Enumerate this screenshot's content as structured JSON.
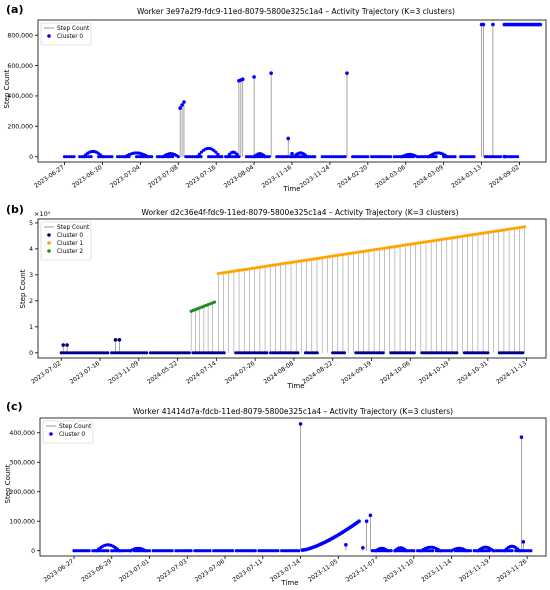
{
  "chart_data": [
    {
      "panel_label": "(a)",
      "type": "scatter",
      "title": "Worker 3e97a2f9-fdc9-11ed-8079-5800e325c1a4 – Activity Trajectory (K=3 clusters)",
      "xlabel": "Time",
      "ylabel": "Step Count",
      "x_ticks": [
        "2023-06-27",
        "2023-06-30",
        "2023-07-04",
        "2023-07-08",
        "2023-07-16",
        "2023-08-04",
        "2023-11-16",
        "2023-11-24",
        "2024-02-20",
        "2024-03-06",
        "2024-03-09",
        "2024-03-13",
        "2024-09-02"
      ],
      "x_tick_positions": [
        0,
        1,
        2,
        3,
        4,
        5,
        6,
        7,
        8,
        9,
        10,
        11,
        12
      ],
      "x_range": [
        -0.7,
        12.7
      ],
      "y_ticks": [
        0,
        200000,
        400000,
        600000,
        800000
      ],
      "y_tick_labels": [
        "0",
        "200,000",
        "400,000",
        "600,000",
        "800,000"
      ],
      "ylim": [
        -35000,
        900000
      ],
      "y_exponent": "",
      "legend": [
        "Step Count",
        "Cluster 0"
      ],
      "legend_position": "top-left",
      "colors": {
        "line": "#808080",
        "Cluster 0": "#0000ff"
      },
      "baseline_runs": [
        [
          0.0,
          0.25
        ],
        [
          0.4,
          0.7
        ],
        [
          0.9,
          1.25
        ],
        [
          1.4,
          1.7
        ],
        [
          1.9,
          2.3
        ],
        [
          2.45,
          2.85
        ],
        [
          3.2,
          3.6
        ],
        [
          3.8,
          4.15
        ],
        [
          4.25,
          4.55
        ],
        [
          4.8,
          5.4
        ],
        [
          5.6,
          6.0
        ],
        [
          6.1,
          6.6
        ],
        [
          6.8,
          7.4
        ],
        [
          7.6,
          8.0
        ],
        [
          8.1,
          8.6
        ],
        [
          8.7,
          9.2
        ],
        [
          9.35,
          9.8
        ],
        [
          10.0,
          10.3
        ],
        [
          10.45,
          10.8
        ],
        [
          11.1,
          11.5
        ],
        [
          11.6,
          11.95
        ]
      ],
      "hump_runs": [
        [
          0.5,
          1.0,
          35000
        ],
        [
          1.6,
          2.2,
          25000
        ],
        [
          2.6,
          3.0,
          20000
        ],
        [
          3.5,
          4.1,
          55000
        ],
        [
          4.3,
          4.6,
          30000
        ],
        [
          5.0,
          5.3,
          20000
        ],
        [
          6.05,
          6.4,
          25000
        ],
        [
          8.9,
          9.3,
          15000
        ],
        [
          9.6,
          10.1,
          25000
        ]
      ],
      "spikes": [
        [
          3.05,
          320000
        ],
        [
          3.1,
          340000
        ],
        [
          3.15,
          360000
        ],
        [
          4.6,
          500000
        ],
        [
          4.65,
          505000
        ],
        [
          4.7,
          510000
        ],
        [
          5.0,
          525000
        ],
        [
          5.45,
          550000
        ],
        [
          5.9,
          120000
        ],
        [
          6.0,
          20000
        ],
        [
          7.45,
          550000
        ],
        [
          11.0,
          870000
        ],
        [
          11.05,
          870000
        ],
        [
          11.3,
          870000
        ],
        [
          11.6,
          0
        ]
      ],
      "plateau": [
        11.6,
        12.55,
        870000
      ]
    },
    {
      "panel_label": "(b)",
      "type": "scatter",
      "title": "Worker d2c36e4f-fdc9-11ed-8079-5800e325c1a4 – Activity Trajectory (K=3 clusters)",
      "xlabel": "Time",
      "ylabel": "Step Count",
      "x_ticks": [
        "2023-07-02",
        "2023-07-16",
        "2023-11-09",
        "2024-05-22",
        "2024-07-14",
        "2024-07-26",
        "2024-08-08",
        "2024-08-22",
        "2024-09-19",
        "2024-10-06",
        "2024-10-19",
        "2024-10-31",
        "2024-11-13"
      ],
      "x_tick_positions": [
        0,
        1,
        2,
        3,
        4,
        5,
        6,
        7,
        8,
        9,
        10,
        11,
        12
      ],
      "x_range": [
        -0.6,
        12.5
      ],
      "y_ticks": [
        0,
        100000,
        200000,
        300000,
        400000,
        500000
      ],
      "y_tick_labels": [
        "0",
        "1",
        "2",
        "3",
        "4",
        "5"
      ],
      "ylim": [
        -20000,
        515000
      ],
      "y_exponent": "×10⁵",
      "legend": [
        "Step Count",
        "Cluster 0",
        "Cluster 1",
        "Cluster 2"
      ],
      "legend_position": "top-left",
      "colors": {
        "line": "#808080",
        "Cluster 0": "#00008b",
        "Cluster 1": "#ffa500",
        "Cluster 2": "#228b22"
      },
      "cluster0_runs": [
        [
          0.0,
          1.2
        ],
        [
          1.3,
          2.2
        ],
        [
          2.3,
          3.3
        ],
        [
          3.4,
          4.2
        ],
        [
          4.5,
          5.3
        ],
        [
          5.4,
          6.1
        ],
        [
          6.3,
          6.6
        ],
        [
          7.0,
          7.3
        ],
        [
          7.6,
          8.3
        ],
        [
          8.5,
          9.1
        ],
        [
          9.3,
          10.2
        ],
        [
          10.4,
          11.0
        ],
        [
          11.3,
          11.9
        ]
      ],
      "cluster0_spikes": [
        [
          0.05,
          30000
        ],
        [
          0.15,
          30000
        ],
        [
          1.4,
          50000
        ],
        [
          1.5,
          50000
        ]
      ],
      "cluster2_range": [
        3.35,
        3.95,
        160000,
        195000
      ],
      "cluster1_range": [
        4.05,
        11.95,
        305000,
        485000
      ]
    },
    {
      "panel_label": "(c)",
      "type": "scatter",
      "title": "Worker 41414d7a-fdcb-11ed-8079-5800e325c1a4 – Activity Trajectory (K=3 clusters)",
      "xlabel": "Time",
      "ylabel": "Step Count",
      "x_ticks": [
        "2023-06-27",
        "2023-06-29",
        "2023-07-01",
        "2023-07-03",
        "2023-07-06",
        "2023-07-11",
        "2023-07-14",
        "2023-11-05",
        "2023-11-07",
        "2023-11-10",
        "2023-11-14",
        "2023-11-19",
        "2023-11-26"
      ],
      "x_tick_positions": [
        0,
        1,
        2,
        3,
        4,
        5,
        6,
        7,
        8,
        9,
        10,
        11,
        12
      ],
      "x_range": [
        -0.9,
        12.5
      ],
      "y_ticks": [
        0,
        100000,
        200000,
        300000,
        400000
      ],
      "y_tick_labels": [
        "0",
        "100,000",
        "200,000",
        "300,000",
        "400,000"
      ],
      "ylim": [
        -18000,
        450000
      ],
      "y_exponent": "",
      "legend": [
        "Step Count",
        "Cluster 0"
      ],
      "legend_position": "top-left",
      "colors": {
        "line": "#808080",
        "Cluster 0": "#0000ff"
      },
      "baseline_runs": [
        [
          0.0,
          0.4
        ],
        [
          0.5,
          0.9
        ],
        [
          1.0,
          1.5
        ],
        [
          1.6,
          2.0
        ],
        [
          2.1,
          2.6
        ],
        [
          2.7,
          3.1
        ],
        [
          3.2,
          3.6
        ],
        [
          3.7,
          4.2
        ],
        [
          4.3,
          4.8
        ],
        [
          4.9,
          5.4
        ],
        [
          5.5,
          5.95
        ],
        [
          7.9,
          8.4
        ],
        [
          8.5,
          9.0
        ],
        [
          9.1,
          9.5
        ],
        [
          9.6,
          10.0
        ],
        [
          10.1,
          10.5
        ],
        [
          10.6,
          11.0
        ],
        [
          11.1,
          11.6
        ],
        [
          11.7,
          12.1
        ]
      ],
      "hump_runs": [
        [
          0.6,
          1.2,
          20000
        ],
        [
          1.5,
          1.9,
          8000
        ],
        [
          8.0,
          8.3,
          8000
        ],
        [
          8.5,
          8.8,
          10000
        ],
        [
          9.2,
          9.7,
          12000
        ],
        [
          10.0,
          10.4,
          8000
        ],
        [
          10.7,
          11.1,
          12000
        ],
        [
          11.4,
          11.8,
          15000
        ]
      ],
      "ramp": [
        6.05,
        7.55,
        2000,
        100000
      ],
      "spikes": [
        [
          6.0,
          430000
        ],
        [
          7.2,
          20000
        ],
        [
          7.65,
          10000
        ],
        [
          7.75,
          100000
        ],
        [
          7.85,
          120000
        ],
        [
          11.85,
          385000
        ],
        [
          11.9,
          30000
        ]
      ]
    }
  ]
}
